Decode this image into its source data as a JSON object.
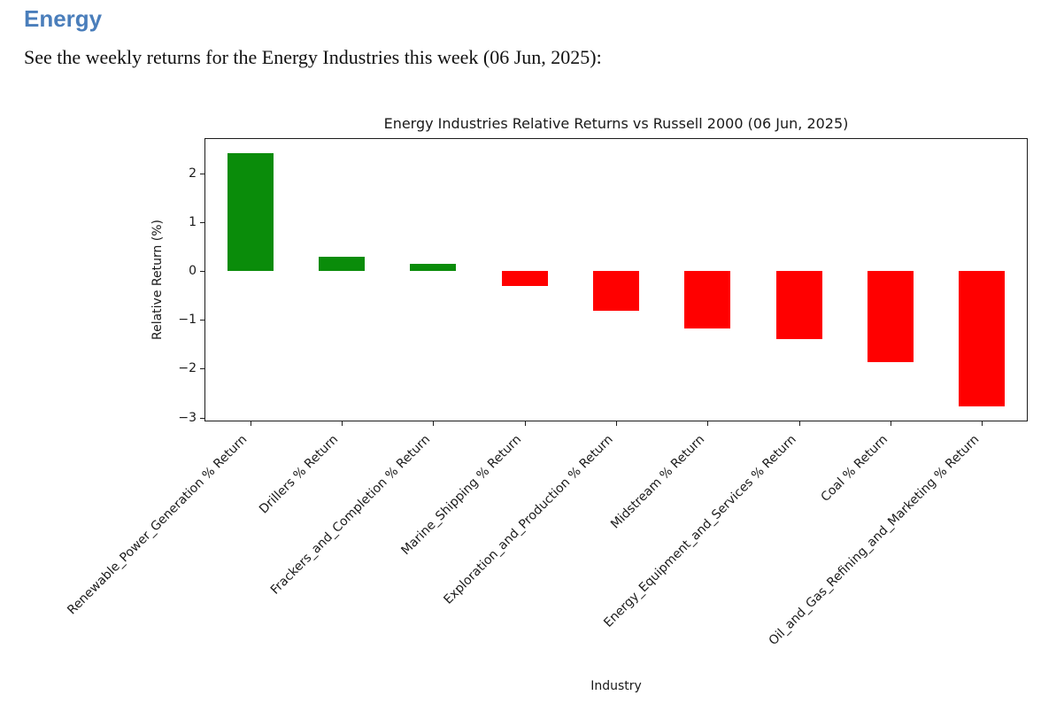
{
  "page": {
    "heading": "Energy",
    "intro": "See the weekly returns for the Energy Industries this week (06 Jun, 2025):"
  },
  "colors": {
    "heading_blue": "#4a7ebb",
    "positive_green": "#0a8c0a",
    "negative_red": "#ff0000",
    "axis_color": "#1c1c1c"
  },
  "chart_data": {
    "type": "bar",
    "title": "Energy Industries Relative Returns vs Russell 2000 (06 Jun, 2025)",
    "xlabel": "Industry",
    "ylabel": "Relative Return (%)",
    "ylim": [
      -3.08,
      2.72
    ],
    "yticks": [
      2,
      1,
      0,
      -1,
      -2,
      -3
    ],
    "grid": false,
    "legend": "none",
    "color_rule": "green if value >= 0 else red",
    "categories": [
      "Renewable_Power_Generation % Return",
      "Drillers % Return",
      "Frackers_and_Completion % Return",
      "Marine_Shipping % Return",
      "Exploration_and_Production % Return",
      "Midstream % Return",
      "Energy_Equipment_and_Services % Return",
      "Coal % Return",
      "Oil_and_Gas_Refining_and_Marketing % Return"
    ],
    "values": [
      2.42,
      0.3,
      0.15,
      -0.3,
      -0.82,
      -1.18,
      -1.4,
      -1.87,
      -2.77
    ]
  }
}
